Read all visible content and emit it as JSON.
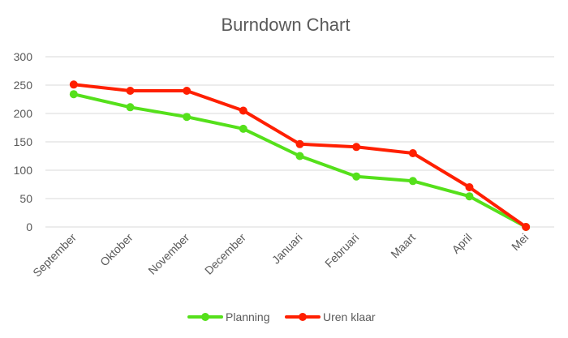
{
  "chart_data": {
    "type": "line",
    "title": "Burndown Chart",
    "categories": [
      "September",
      "Oktober",
      "November",
      "December",
      "Januari",
      "Februari",
      "Maart",
      "April",
      "Mei"
    ],
    "series": [
      {
        "name": "Planning",
        "color": "#55e01b",
        "values": [
          234,
          211,
          194,
          173,
          125,
          89,
          81,
          54,
          0
        ]
      },
      {
        "name": "Uren klaar",
        "color": "#ff1f00",
        "values": [
          251,
          240,
          240,
          205,
          146,
          141,
          130,
          70,
          0
        ]
      }
    ],
    "ylim": [
      0,
      300
    ],
    "yticks": [
      0,
      50,
      100,
      150,
      200,
      250,
      300
    ],
    "grid": true,
    "legend_position": "bottom"
  }
}
